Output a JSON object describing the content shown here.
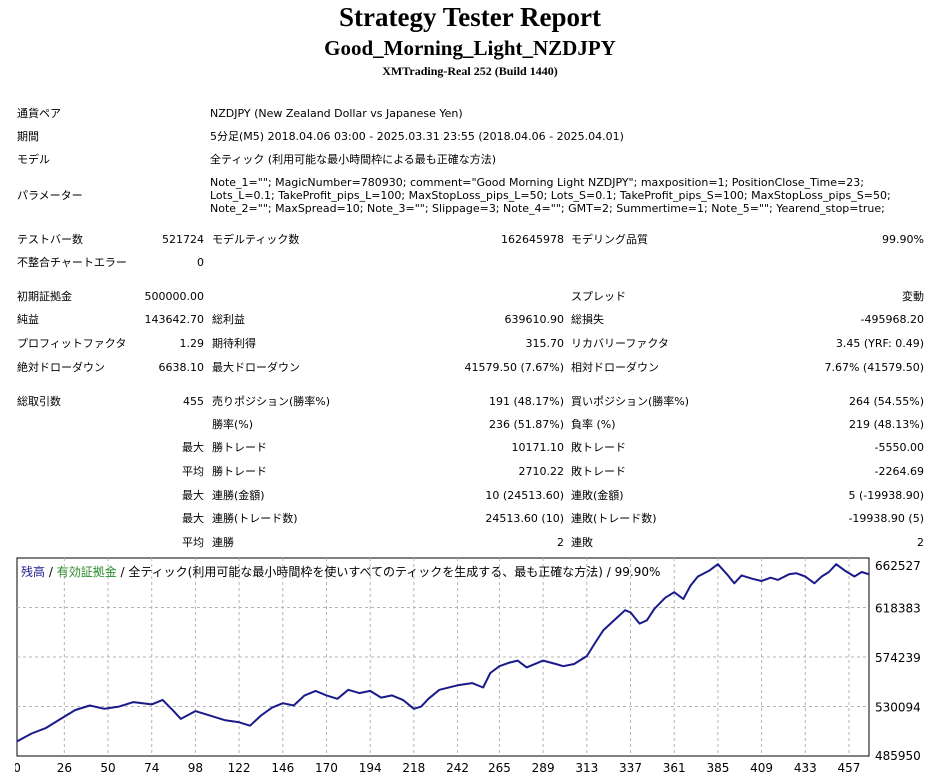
{
  "header": {
    "title": "Strategy Tester Report",
    "subtitle": "Good_Morning_Light_NZDJPY",
    "build": "XMTrading-Real 252 (Build 1440)"
  },
  "info": {
    "pair_label": "通貨ペア",
    "pair_value": "NZDJPY (New Zealand Dollar vs Japanese Yen)",
    "period_label": "期間",
    "period_value": "5分足(M5) 2018.04.06 03:00 - 2025.03.31 23:55 (2018.04.06 - 2025.04.01)",
    "model_label": "モデル",
    "model_value": "全ティック (利用可能な最小時間枠による最も正確な方法)",
    "params_label": "パラメーター",
    "params_value": "Note_1=\"\"; MagicNumber=780930; comment=\"Good Morning Light NZDJPY\"; maxposition=1; PositionClose_Time=23; Lots_L=0.1; TakeProfit_pips_L=100; MaxStopLoss_pips_L=50; Lots_S=0.1; TakeProfit_pips_S=100; MaxStopLoss_pips_S=50; Note_2=\"\"; MaxSpread=10; Note_3=\"\"; Slippage=3; Note_4=\"\"; GMT=2; Summertime=1; Note_5=\"\"; Yearend_stop=true;"
  },
  "stats": {
    "bars_label": "テストバー数",
    "bars_value": "521724",
    "ticks_label": "モデルティック数",
    "ticks_value": "162645978",
    "quality_label": "モデリング品質",
    "quality_value": "99.90%",
    "mismatch_label": "不整合チャートエラー",
    "mismatch_value": "0",
    "deposit_label": "初期証拠金",
    "deposit_value": "500000.00",
    "spread_label": "スプレッド",
    "spread_value": "変動",
    "net_label": "純益",
    "net_value": "143642.70",
    "gross_profit_label": "総利益",
    "gross_profit_value": "639610.90",
    "gross_loss_label": "総損失",
    "gross_loss_value": "-495968.20",
    "pf_label": "プロフィットファクタ",
    "pf_value": "1.29",
    "expected_label": "期待利得",
    "expected_value": "315.70",
    "recovery_label": "リカバリーファクタ",
    "recovery_value": "3.45 (YRF: 0.49)",
    "abs_dd_label": "絶対ドローダウン",
    "abs_dd_value": "6638.10",
    "max_dd_label": "最大ドローダウン",
    "max_dd_value": "41579.50 (7.67%)",
    "rel_dd_label": "相対ドローダウン",
    "rel_dd_value": "7.67% (41579.50)",
    "trades_label": "総取引数",
    "trades_value": "455",
    "short_label": "売りポジション(勝率%)",
    "short_value": "191 (48.17%)",
    "long_label": "買いポジション(勝率%)",
    "long_value": "264 (54.55%)",
    "win_pct_label": "勝率(%)",
    "win_pct_value": "236 (51.87%)",
    "loss_pct_label": "負率 (%)",
    "loss_pct_value": "219 (48.13%)",
    "max1_label": "最大",
    "max_win_label": "勝トレード",
    "max_win_value": "10171.10",
    "max_loss_label": "敗トレード",
    "max_loss_value": "-5550.00",
    "avg1_label": "平均",
    "avg_win_label": "勝トレード",
    "avg_win_value": "2710.22",
    "avg_loss_label": "敗トレード",
    "avg_loss_value": "-2264.69",
    "max2_label": "最大",
    "cons_win_amt_label": "連勝(金額)",
    "cons_win_amt_value": "10 (24513.60)",
    "cons_loss_amt_label": "連敗(金額)",
    "cons_loss_amt_value": "5 (-19938.90)",
    "max3_label": "最大",
    "cons_win_cnt_label": "連勝(トレード数)",
    "cons_win_cnt_value": "24513.60 (10)",
    "cons_loss_cnt_label": "連敗(トレード数)",
    "cons_loss_cnt_value": "-19938.90 (5)",
    "avg2_label": "平均",
    "avg_cons_win_label": "連勝",
    "avg_cons_win_value": "2",
    "avg_cons_loss_label": "連敗",
    "avg_cons_loss_value": "2"
  },
  "chart_legend": {
    "balance": "残高",
    "sep1": " / ",
    "equity": "有効証拠金",
    "sep2": " / ",
    "model": "全ティック(利用可能な最小時間枠を使いすべてのティックを生成する、最も正確な方法)",
    "sep3": " / ",
    "quality": "99.90%"
  },
  "chart_data": {
    "type": "line",
    "title": "",
    "xlabel": "",
    "ylabel": "",
    "x_ticks": [
      "0",
      "26",
      "50",
      "74",
      "98",
      "122",
      "146",
      "170",
      "194",
      "218",
      "242",
      "265",
      "289",
      "313",
      "337",
      "361",
      "385",
      "409",
      "433",
      "457"
    ],
    "y_ticks": [
      "662527",
      "618383",
      "574239",
      "530094",
      "485950"
    ],
    "xlim": [
      0,
      468
    ],
    "ylim": [
      485950,
      662527
    ],
    "grid": true,
    "series": [
      {
        "color": "#1a1a8c",
        "x": [
          0,
          8,
          16,
          24,
          32,
          40,
          48,
          56,
          64,
          74,
          80,
          86,
          90,
          98,
          106,
          114,
          122,
          128,
          134,
          140,
          146,
          152,
          158,
          164,
          170,
          176,
          182,
          188,
          194,
          200,
          206,
          212,
          218,
          222,
          226,
          232,
          242,
          250,
          256,
          260,
          265,
          270,
          275,
          280,
          289,
          296,
          300,
          306,
          313,
          318,
          322,
          326,
          330,
          334,
          337,
          342,
          346,
          350,
          356,
          361,
          366,
          370,
          374,
          380,
          385,
          390,
          394,
          398,
          404,
          409,
          414,
          418,
          424,
          428,
          433,
          438,
          442,
          446,
          450,
          455,
          460,
          464,
          468
        ],
        "y": [
          499000,
          506000,
          511000,
          519000,
          527000,
          531000,
          528000,
          530000,
          534000,
          532000,
          536000,
          526000,
          519000,
          526000,
          522000,
          518000,
          516000,
          513000,
          522000,
          529000,
          533000,
          531000,
          540000,
          544000,
          540000,
          537000,
          545000,
          542000,
          544000,
          538000,
          540000,
          536000,
          528000,
          530000,
          537000,
          545000,
          549000,
          551000,
          547000,
          560000,
          566000,
          569000,
          571000,
          565000,
          571000,
          568000,
          566000,
          568000,
          575000,
          588000,
          598000,
          604000,
          610000,
          616000,
          614000,
          604000,
          607000,
          617000,
          627000,
          632000,
          626000,
          638000,
          646000,
          651000,
          657000,
          648000,
          640000,
          647000,
          644000,
          642000,
          645000,
          643000,
          648000,
          649000,
          646000,
          640000,
          646000,
          650000,
          657000,
          651000,
          646000,
          650000,
          648000
        ]
      }
    ]
  }
}
